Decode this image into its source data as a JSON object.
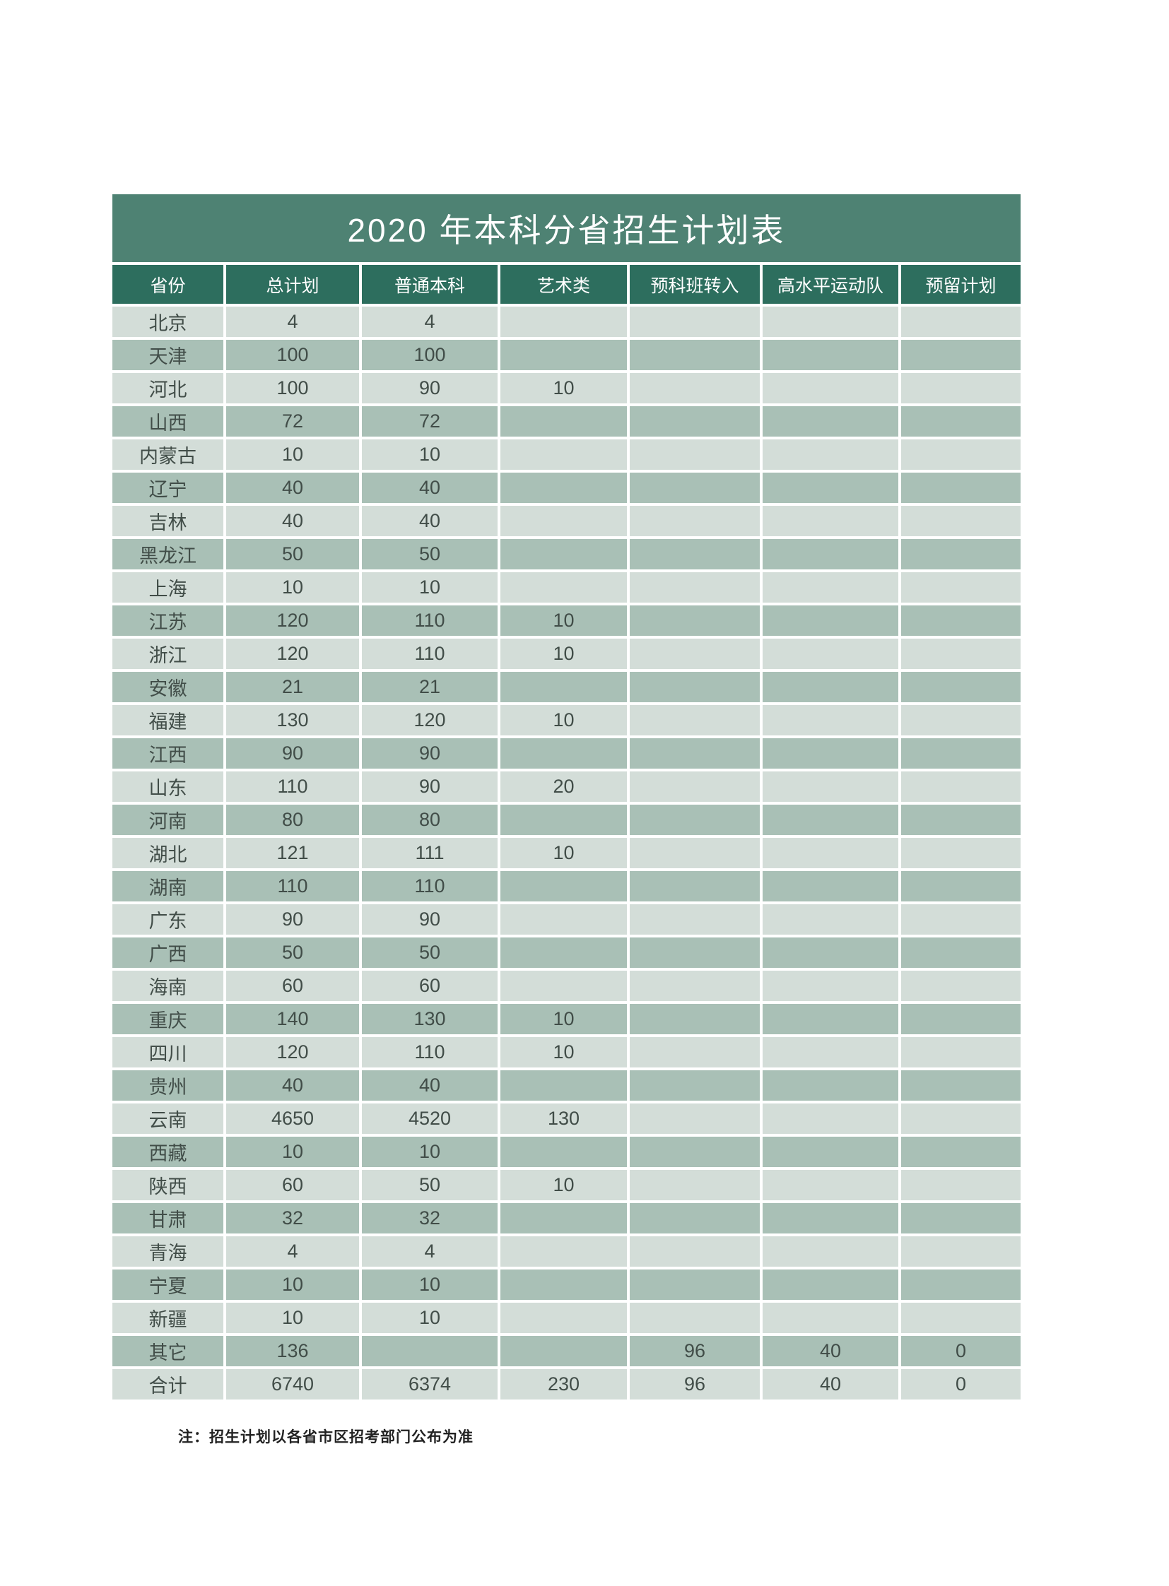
{
  "title": "2020 年本科分省招生计划表",
  "note": "注：招生计划以各省市区招考部门公布为准",
  "colors": {
    "banner_green": "#4E8273",
    "header_green": "#2D6E5E",
    "row_light": "#D3DDD8",
    "row_dark": "#A9C0B6",
    "cell_text": "#414D48",
    "title_text": "#FFFFFF"
  },
  "table": {
    "columns": [
      "省份",
      "总计划",
      "普通本科",
      "艺术类",
      "预科班转入",
      "高水平运动队",
      "预留计划"
    ],
    "rows": [
      [
        "北京",
        "4",
        "4",
        "",
        "",
        "",
        ""
      ],
      [
        "天津",
        "100",
        "100",
        "",
        "",
        "",
        ""
      ],
      [
        "河北",
        "100",
        "90",
        "10",
        "",
        "",
        ""
      ],
      [
        "山西",
        "72",
        "72",
        "",
        "",
        "",
        ""
      ],
      [
        "内蒙古",
        "10",
        "10",
        "",
        "",
        "",
        ""
      ],
      [
        "辽宁",
        "40",
        "40",
        "",
        "",
        "",
        ""
      ],
      [
        "吉林",
        "40",
        "40",
        "",
        "",
        "",
        ""
      ],
      [
        "黑龙江",
        "50",
        "50",
        "",
        "",
        "",
        ""
      ],
      [
        "上海",
        "10",
        "10",
        "",
        "",
        "",
        ""
      ],
      [
        "江苏",
        "120",
        "110",
        "10",
        "",
        "",
        ""
      ],
      [
        "浙江",
        "120",
        "110",
        "10",
        "",
        "",
        ""
      ],
      [
        "安徽",
        "21",
        "21",
        "",
        "",
        "",
        ""
      ],
      [
        "福建",
        "130",
        "120",
        "10",
        "",
        "",
        ""
      ],
      [
        "江西",
        "90",
        "90",
        "",
        "",
        "",
        ""
      ],
      [
        "山东",
        "110",
        "90",
        "20",
        "",
        "",
        ""
      ],
      [
        "河南",
        "80",
        "80",
        "",
        "",
        "",
        ""
      ],
      [
        "湖北",
        "121",
        "111",
        "10",
        "",
        "",
        ""
      ],
      [
        "湖南",
        "110",
        "110",
        "",
        "",
        "",
        ""
      ],
      [
        "广东",
        "90",
        "90",
        "",
        "",
        "",
        ""
      ],
      [
        "广西",
        "50",
        "50",
        "",
        "",
        "",
        ""
      ],
      [
        "海南",
        "60",
        "60",
        "",
        "",
        "",
        ""
      ],
      [
        "重庆",
        "140",
        "130",
        "10",
        "",
        "",
        ""
      ],
      [
        "四川",
        "120",
        "110",
        "10",
        "",
        "",
        ""
      ],
      [
        "贵州",
        "40",
        "40",
        "",
        "",
        "",
        ""
      ],
      [
        "云南",
        "4650",
        "4520",
        "130",
        "",
        "",
        ""
      ],
      [
        "西藏",
        "10",
        "10",
        "",
        "",
        "",
        ""
      ],
      [
        "陕西",
        "60",
        "50",
        "10",
        "",
        "",
        ""
      ],
      [
        "甘肃",
        "32",
        "32",
        "",
        "",
        "",
        ""
      ],
      [
        "青海",
        "4",
        "4",
        "",
        "",
        "",
        ""
      ],
      [
        "宁夏",
        "10",
        "10",
        "",
        "",
        "",
        ""
      ],
      [
        "新疆",
        "10",
        "10",
        "",
        "",
        "",
        ""
      ],
      [
        "其它",
        "136",
        "",
        "",
        "96",
        "40",
        "0"
      ],
      [
        "合计",
        "6740",
        "6374",
        "230",
        "96",
        "40",
        "0"
      ]
    ]
  }
}
